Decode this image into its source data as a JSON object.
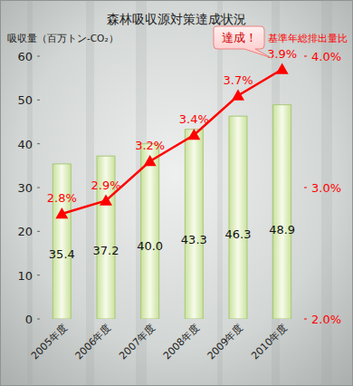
{
  "chart_data": {
    "type": "bar",
    "title": "森林吸収源対策達成状況",
    "annotation": "達成！",
    "categories": [
      "2005年度",
      "2006年度",
      "2007年度",
      "2008年度",
      "2009年度",
      "2010年度"
    ],
    "series": [
      {
        "name": "吸収量（百万トン-CO₂）",
        "type": "bar",
        "color": "#c9e29a",
        "values": [
          35.4,
          37.2,
          40.0,
          43.3,
          46.3,
          48.9
        ],
        "value_labels": [
          "35.4",
          "37.2",
          "40.0",
          "43.3",
          "46.3",
          "48.9"
        ]
      },
      {
        "name": "基準年総排出量比",
        "type": "line",
        "axis": "y2",
        "color": "#ff0000",
        "marker": "triangle",
        "values": [
          2.8,
          2.9,
          3.2,
          3.4,
          3.7,
          3.9
        ],
        "value_labels": [
          "2.8%",
          "2.9%",
          "3.2%",
          "3.4%",
          "3.7%",
          "3.9%"
        ]
      }
    ],
    "ylim": [
      0,
      60
    ],
    "yticks": [
      0,
      10,
      20,
      30,
      40,
      50,
      60
    ],
    "y2lim": [
      2,
      4
    ],
    "y2ticks": [
      {
        "value": 2,
        "label": "2.0%"
      },
      {
        "value": 3,
        "label": "3.0%"
      },
      {
        "value": 4,
        "label": "4.0%"
      }
    ],
    "grid": false,
    "data_labels": true
  }
}
